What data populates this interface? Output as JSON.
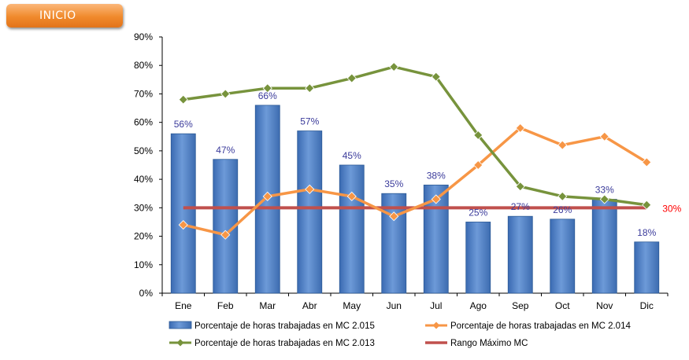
{
  "header": {
    "inicio_label": "INICIO"
  },
  "chart_data": {
    "type": "bar",
    "categories": [
      "Ene",
      "Feb",
      "Mar",
      "Abr",
      "May",
      "Jun",
      "Jul",
      "Ago",
      "Sep",
      "Oct",
      "Nov",
      "Dic"
    ],
    "ylim": [
      0,
      90
    ],
    "y_ticks": [
      "0%",
      "10%",
      "20%",
      "30%",
      "40%",
      "50%",
      "60%",
      "70%",
      "80%",
      "90%"
    ],
    "series": [
      {
        "name": "Porcentaje de horas trabajadas en MC 2.015",
        "kind": "bar",
        "color": "#4f81bd",
        "values": [
          56,
          47,
          66,
          57,
          45,
          35,
          38,
          25,
          27,
          26,
          33,
          18
        ],
        "labels": [
          "56%",
          "47%",
          "66%",
          "57%",
          "45%",
          "35%",
          "38%",
          "25%",
          "27%",
          "26%",
          "33%",
          "18%"
        ]
      },
      {
        "name": "Porcentaje de horas trabajadas en MC 2.014",
        "kind": "line",
        "color": "#f79646",
        "values": [
          24,
          20.5,
          34,
          36.5,
          34,
          27,
          33,
          45,
          58,
          52,
          55,
          46
        ]
      },
      {
        "name": "Porcentaje de horas trabajadas en MC 2.013",
        "kind": "line",
        "color": "#77933c",
        "values": [
          68,
          70,
          72,
          72,
          75.5,
          79.5,
          76,
          55.5,
          37.5,
          34,
          33,
          31
        ]
      },
      {
        "name": "Rango Máximo MC",
        "kind": "threshold",
        "color": "#c0504d",
        "value": 30,
        "label": "30%"
      }
    ],
    "grid": false,
    "legend_position": "bottom"
  }
}
